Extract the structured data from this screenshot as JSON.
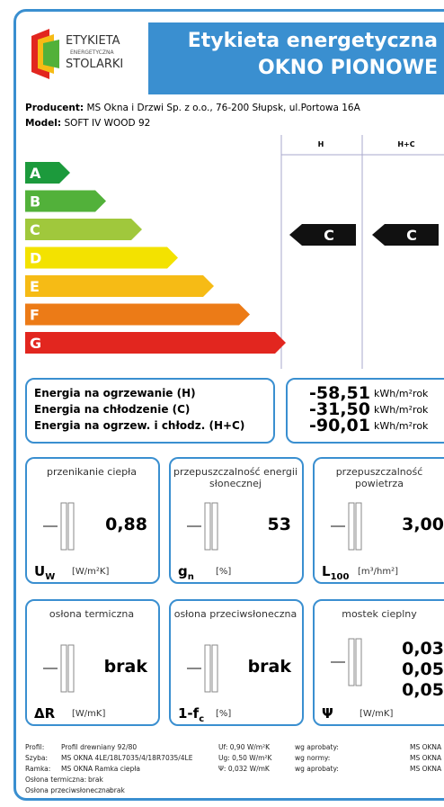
{
  "header": {
    "logo": [
      "ETYKIETA",
      "ENERGETYCZNA",
      "STOLARKI"
    ],
    "title": "Etykieta energetyczna",
    "subtitle": "OKNO PIONOWE"
  },
  "producer": {
    "label": "Producent:",
    "value": "MS Okna i Drzwi Sp. z o.o., 76-200 Słupsk, ul.Portowa 16A"
  },
  "model": {
    "label": "Model:",
    "value": "SOFT IV WOOD 92"
  },
  "columns": [
    "H",
    "H+C"
  ],
  "classes": [
    {
      "name": "A",
      "color": "#1c9a3c"
    },
    {
      "name": "B",
      "color": "#52b13a"
    },
    {
      "name": "C",
      "color": "#a0c83c"
    },
    {
      "name": "D",
      "color": "#f3e200"
    },
    {
      "name": "E",
      "color": "#f6bb15"
    },
    {
      "name": "F",
      "color": "#ec7b17"
    },
    {
      "name": "G",
      "color": "#e2261f"
    }
  ],
  "ratings": [
    "C",
    "C"
  ],
  "energy": [
    {
      "label": "Energia na ogrzewanie (H)",
      "value": "-58,51",
      "unit": "kWh/m²rok"
    },
    {
      "label": "Energia na chłodzenie (C)",
      "value": "-31,50",
      "unit": "kWh/m²rok"
    },
    {
      "label": "Energia na ogrzew. i chłodz. (H+C)",
      "value": "-90,01",
      "unit": "kWh/m²rok"
    }
  ],
  "tiles": [
    {
      "title": "przenikanie ciepła",
      "values": [
        "0,88"
      ],
      "symbol": "U",
      "sub": "W",
      "unit": "[W/m²K]"
    },
    {
      "title": "przepuszczalność energii słonecznej",
      "values": [
        "53"
      ],
      "symbol": "g",
      "sub": "n",
      "unit": "[%]"
    },
    {
      "title": "przepuszczalność powietrza",
      "values": [
        "3,00"
      ],
      "symbol": "L",
      "sub": "100",
      "unit": "[m³/hm²]"
    },
    {
      "title": "osłona termiczna",
      "values": [
        "brak"
      ],
      "symbol": "ΔR",
      "sub": "",
      "unit": "[W/mK]"
    },
    {
      "title": "osłona przeciwsłoneczna",
      "values": [
        "brak"
      ],
      "symbol": "1-f",
      "sub": "c",
      "unit": "[%]"
    },
    {
      "title": "mostek cieplny",
      "values": [
        "0,03",
        "0,05",
        "0,05"
      ],
      "symbol": "Ψ",
      "sub": "",
      "unit": "[W/mK]"
    }
  ],
  "footer": [
    [
      "Profil:",
      "Profil drewniany 92/80",
      "Uf: 0,90 W/m²K",
      "wg aprobaty:",
      "MS OKNA"
    ],
    [
      "Szyba:",
      "MS OKNA 4LE/18L7035/4/18R7035/4LE",
      "Ug: 0,50 W/m²K",
      "wg normy:",
      "MS OKNA"
    ],
    [
      "Ramka:",
      "MS OKNA Ramka ciepła",
      "Ψ: 0,032 W/mK",
      "wg aprobaty:",
      "MS OKNA"
    ],
    [
      "Osłona termiczna:",
      "brak"
    ],
    [
      "Osłona przeciwsłoneczna:",
      "brak"
    ]
  ]
}
